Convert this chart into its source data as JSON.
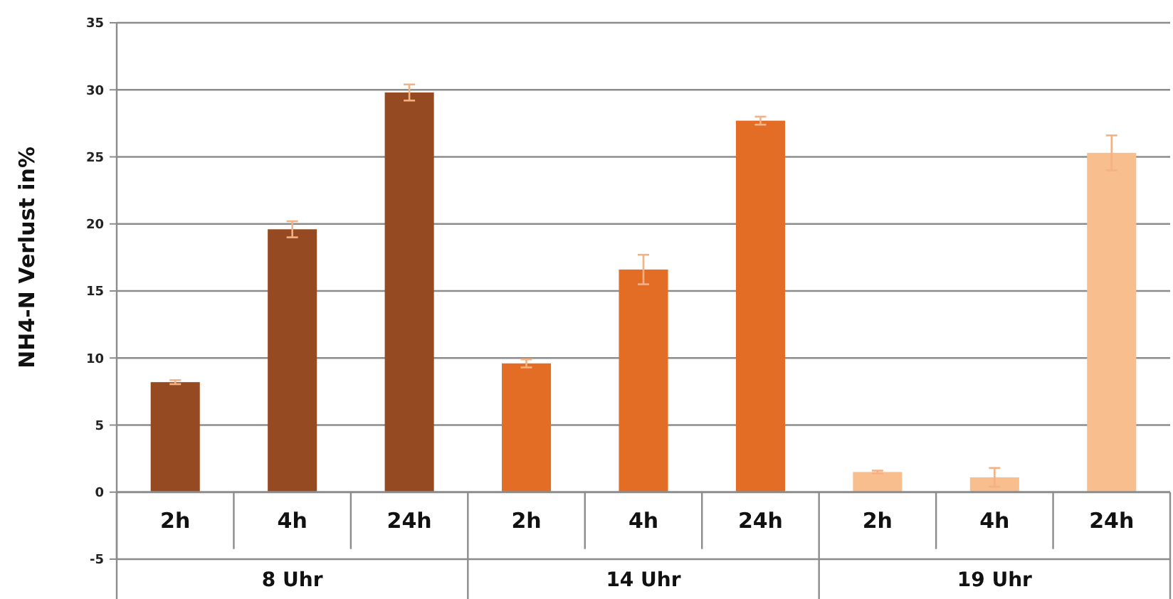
{
  "chart_data": {
    "type": "bar",
    "ylabel": "NH4-N Verlust in%",
    "categories": [
      "2h",
      "4h",
      "24h",
      "2h",
      "4h",
      "24h",
      "2h",
      "4h",
      "24h"
    ],
    "series": [
      {
        "color": "#964a22",
        "values": [
          8.2,
          19.6,
          29.8,
          null,
          null,
          null,
          null,
          null,
          null
        ],
        "errors": [
          0.15,
          0.6,
          0.6,
          null,
          null,
          null,
          null,
          null,
          null
        ]
      },
      {
        "color": "#e46d26",
        "values": [
          null,
          null,
          null,
          9.6,
          16.6,
          27.7,
          null,
          null,
          null
        ],
        "errors": [
          null,
          null,
          null,
          0.3,
          1.1,
          0.3,
          null,
          null,
          null
        ]
      },
      {
        "color": "#f8be8e",
        "values": [
          null,
          null,
          null,
          null,
          null,
          null,
          1.5,
          1.1,
          25.3
        ],
        "errors": [
          null,
          null,
          null,
          null,
          null,
          null,
          0.1,
          0.7,
          1.3
        ]
      }
    ],
    "annotations": [
      "8 Uhr",
      "14 Uhr",
      "19 Uhr"
    ],
    "ylim": [
      -5,
      35
    ],
    "yticks": [
      -5,
      0,
      5,
      10,
      15,
      20,
      25,
      30,
      35
    ],
    "grid": "y"
  }
}
